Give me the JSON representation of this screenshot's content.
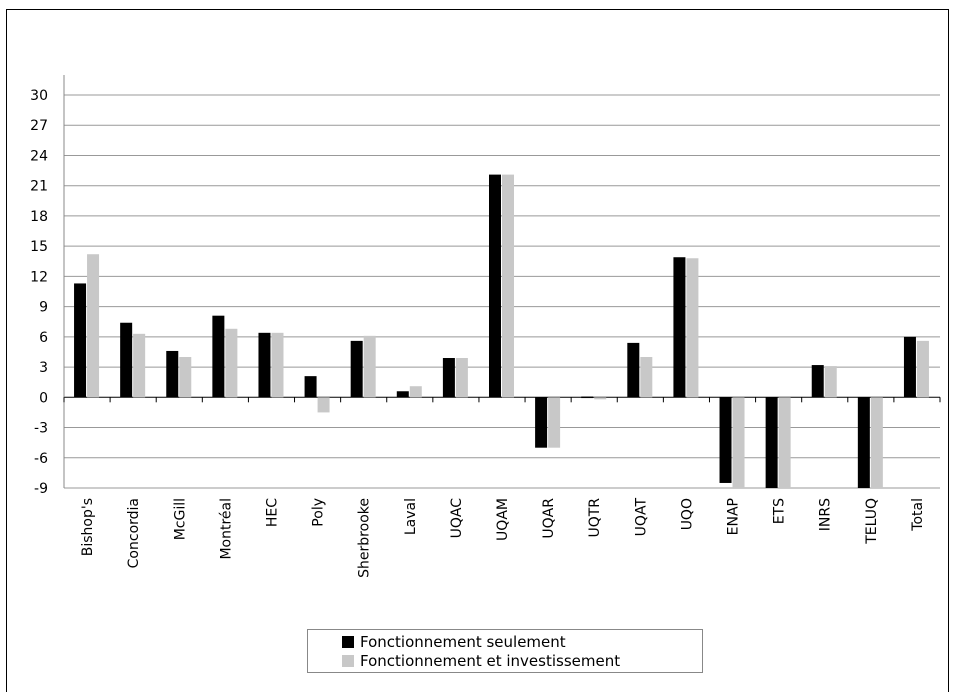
{
  "chart_data": {
    "type": "bar",
    "title": "",
    "xlabel": "",
    "ylabel": "",
    "ylim": [
      -9,
      30
    ],
    "yticks": [
      30,
      27,
      24,
      21,
      18,
      15,
      12,
      9,
      6,
      3,
      0,
      -3,
      -6,
      -9
    ],
    "grid": true,
    "legend_position": "bottom",
    "categories": [
      "Bishop's",
      "Concordia",
      "McGill",
      "Montréal",
      "HEC",
      "Poly",
      "Sherbrooke",
      "Laval",
      "UQAC",
      "UQAM",
      "UQAR",
      "UQTR",
      "UQAT",
      "UQO",
      "ENAP",
      "ETS",
      "INRS",
      "TELUQ",
      "Total"
    ],
    "series": [
      {
        "name": "Fonctionnement seulement",
        "color": "#000000",
        "values": [
          11.3,
          7.4,
          4.6,
          8.1,
          6.4,
          2.1,
          5.6,
          0.6,
          3.9,
          22.1,
          -5.0,
          0.0,
          5.4,
          13.9,
          -8.5,
          -9.0,
          3.2,
          -9.0,
          6.0
        ]
      },
      {
        "name": "Fonctionnement et investissement",
        "color": "#c8c8c8",
        "values": [
          14.2,
          6.3,
          4.0,
          6.8,
          6.4,
          -1.5,
          6.1,
          1.1,
          3.9,
          22.1,
          -5.0,
          -0.2,
          4.0,
          13.8,
          -9.0,
          -9.0,
          3.1,
          -9.0,
          5.6
        ]
      }
    ]
  }
}
